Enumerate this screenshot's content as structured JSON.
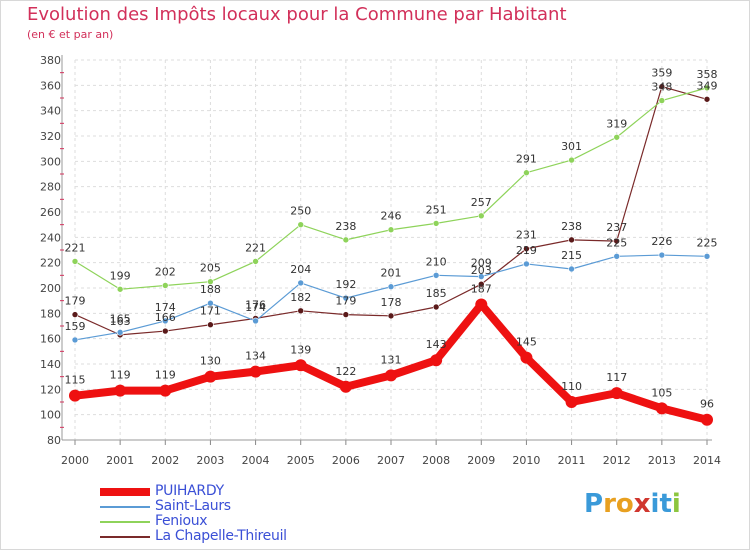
{
  "title": "Evolution des Impôts locaux pour la Commune par Habitant",
  "subtitle": "(en € et par an)",
  "logo": {
    "letters": [
      "P",
      "r",
      "o",
      "x",
      "i",
      "t",
      "i"
    ],
    "colors": [
      "#3a9ad9",
      "#e8a020",
      "#e8a020",
      "#d0362e",
      "#3a9ad9",
      "#3a9ad9",
      "#8cc63f"
    ]
  },
  "chart_data": {
    "type": "line",
    "title": "Evolution des Impôts locaux pour la Commune par Habitant",
    "subtitle": "(en € et par an)",
    "x": [
      "2000",
      "2001",
      "2002",
      "2003",
      "2004",
      "2005",
      "2006",
      "2007",
      "2008",
      "2009",
      "2010",
      "2011",
      "2012",
      "2013",
      "2014"
    ],
    "ylim": [
      80,
      380
    ],
    "yticks": [
      80,
      100,
      120,
      140,
      160,
      180,
      200,
      220,
      240,
      260,
      280,
      300,
      320,
      340,
      360,
      380
    ],
    "grid": true,
    "legend_position": "bottom-left",
    "series": [
      {
        "name": "PUIHARDY",
        "color": "#ee1111",
        "values": [
          115,
          119,
          119,
          130,
          134,
          139,
          122,
          131,
          143,
          187,
          145,
          110,
          117,
          105,
          96
        ]
      },
      {
        "name": "Saint-Laurs",
        "color": "#5b9bd5",
        "values": [
          159,
          165,
          174,
          188,
          174,
          204,
          192,
          201,
          210,
          209,
          219,
          215,
          225,
          226,
          225
        ]
      },
      {
        "name": "Fenioux",
        "color": "#8ed35a",
        "values": [
          221,
          199,
          202,
          205,
          221,
          250,
          238,
          246,
          251,
          257,
          291,
          301,
          319,
          348,
          358
        ]
      },
      {
        "name": "La Chapelle-Thireuil",
        "color": "#7a2a2a",
        "values": [
          179,
          163,
          166,
          171,
          176,
          182,
          179,
          178,
          185,
          203,
          231,
          238,
          237,
          359,
          349
        ]
      }
    ]
  }
}
